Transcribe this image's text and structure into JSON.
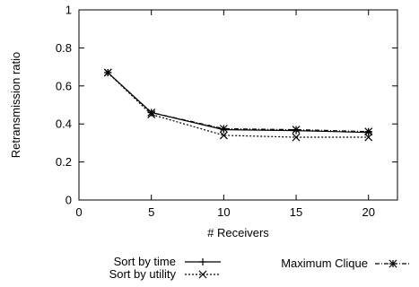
{
  "chart_data": {
    "type": "line",
    "title": "",
    "xlabel": "# Receivers",
    "ylabel": "Retransmission ratio",
    "xlim": [
      0,
      22
    ],
    "ylim": [
      0,
      1
    ],
    "xticks": [
      0,
      5,
      10,
      15,
      20
    ],
    "yticks": [
      0,
      0.2,
      0.4,
      0.6,
      0.8,
      1
    ],
    "ytick_labels": [
      "0",
      "0.2",
      "0.4",
      "0.6",
      "0.8",
      "1"
    ],
    "grid": false,
    "legend_position": "below plot",
    "x": [
      2,
      5,
      10,
      15,
      20
    ],
    "series": [
      {
        "name": "Sort by time",
        "values": [
          0.67,
          0.46,
          0.37,
          0.365,
          0.355
        ],
        "marker": "plus",
        "line_style": "solid",
        "color": "#000000"
      },
      {
        "name": "Sort by utility",
        "values": [
          0.67,
          0.45,
          0.34,
          0.33,
          0.33
        ],
        "marker": "cross",
        "line_style": "dotted",
        "color": "#000000"
      },
      {
        "name": "Maximum Clique",
        "values": [
          0.67,
          0.46,
          0.375,
          0.37,
          0.36
        ],
        "marker": "star",
        "line_style": "dash-dot",
        "color": "#000000"
      }
    ]
  }
}
